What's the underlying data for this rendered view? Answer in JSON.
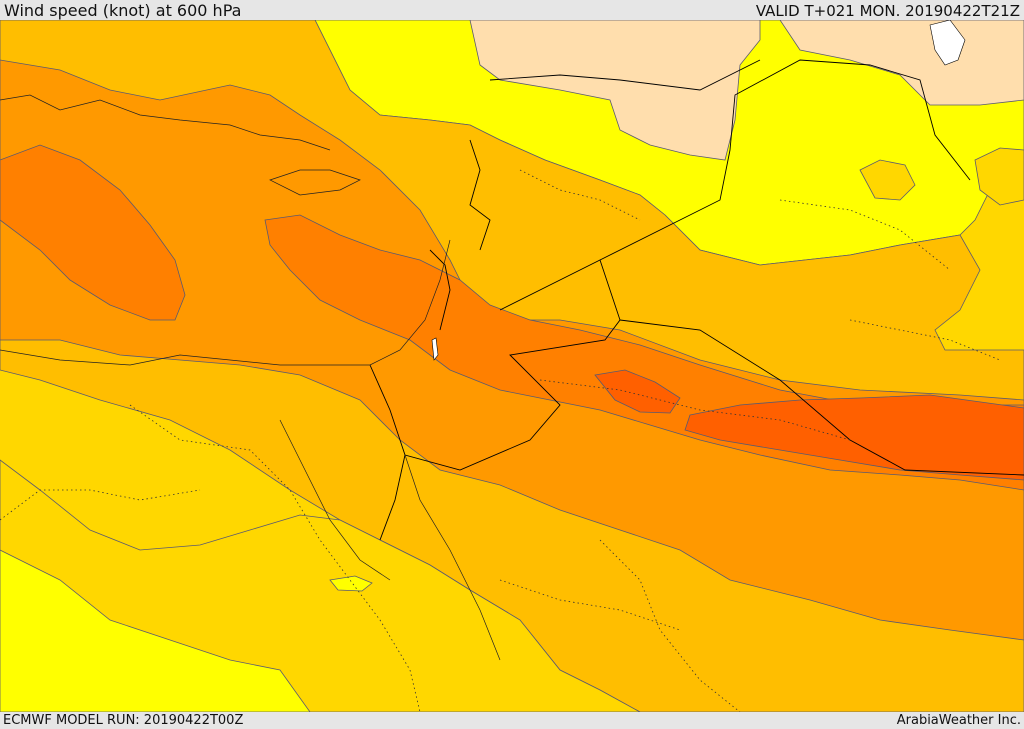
{
  "header": {
    "title": "Wind speed (knot) at 600 hPa",
    "valid_time": "VALID T+021 MON. 20190422T21Z"
  },
  "footer": {
    "model_run": "ECMWF MODEL RUN: 20190422T00Z",
    "credit": "ArabiaWeather Inc."
  },
  "colors": {
    "band_lightest": "#ffdead",
    "band_yellow": "#ffff00",
    "band_gold": "#ffd700",
    "band_amber": "#ffbe00",
    "band_orange": "#ff9900",
    "band_dark_orange": "#ff8000",
    "band_red_orange": "#ff6000",
    "water": "#ffffff",
    "contour": "#5a5a70",
    "border": "#000000"
  }
}
